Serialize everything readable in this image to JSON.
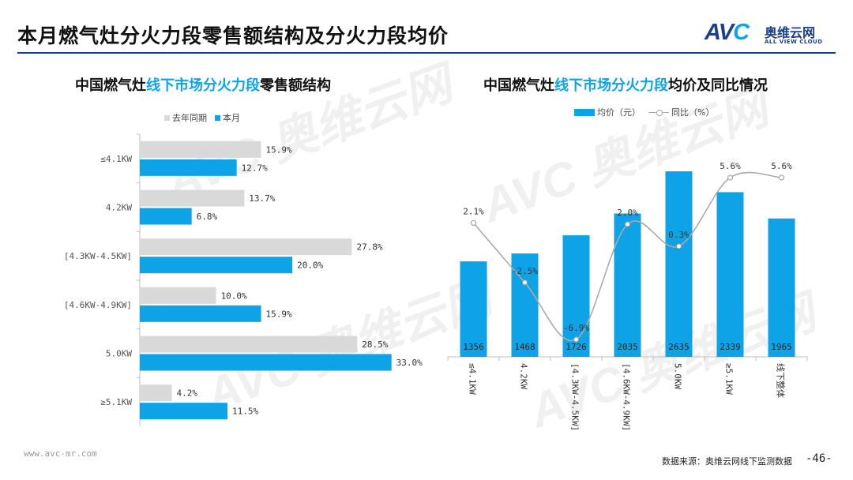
{
  "header": {
    "title": "本月燃气灶分火力段零售额结构及分火力段均价",
    "logo_mark": "AVC",
    "logo_cn": "奥维云网",
    "logo_en": "ALL VIEW CLOUD"
  },
  "colors": {
    "current": "#0ea3e6",
    "last_year": "#d9d9d9",
    "line": "#aaaaaa",
    "brand": "#1a3f8f"
  },
  "left_title": {
    "prefix": "中国燃气灶",
    "highlight": "线下市场分火力段",
    "suffix": "零售额结构"
  },
  "right_title": {
    "prefix": "中国燃气灶",
    "highlight": "线下市场分火力段",
    "suffix": "均价及同比情况"
  },
  "chart_data": [
    {
      "type": "bar",
      "orientation": "horizontal",
      "categories": [
        "≤4.1KW",
        "4.2KW",
        "[4.3KW-4.5KW]",
        "[4.6KW-4.9KW]",
        "5.0KW",
        "≥5.1KW"
      ],
      "series": [
        {
          "name": "去年同期",
          "values": [
            15.9,
            13.7,
            27.8,
            10.0,
            28.5,
            4.2
          ],
          "labels": [
            "15.9%",
            "13.7%",
            "27.8%",
            "10.0%",
            "28.5%",
            "4.2%"
          ]
        },
        {
          "name": "本月",
          "values": [
            12.7,
            6.8,
            20.0,
            15.9,
            33.0,
            11.5
          ],
          "labels": [
            "12.7%",
            "6.8%",
            "20.0%",
            "15.9%",
            "33.0%",
            "11.5%"
          ]
        }
      ],
      "xlim": [
        0,
        35
      ],
      "legend": "top-left"
    },
    {
      "type": "bar+line",
      "categories": [
        "≤4.1KW",
        "4.2KW",
        "[4.3KW-4.5KW]",
        "[4.6KW-4.9KW]",
        "5.0KW",
        "≥5.1KW",
        "线下整体"
      ],
      "bar_series": {
        "name": "均价（元）",
        "values": [
          1356,
          1468,
          1726,
          2035,
          2635,
          2339,
          1965
        ]
      },
      "line_series": {
        "name": "同比（%）",
        "values": [
          2.1,
          -2.5,
          -6.9,
          2.0,
          0.3,
          5.6,
          5.6
        ],
        "labels": [
          "2.1%",
          "-2.5%",
          "-6.9%",
          "2.0%",
          "0.3%",
          "5.6%",
          "5.6%"
        ]
      },
      "legend": "top",
      "grid": false
    }
  ],
  "footer": {
    "url": "www.avc-mr.com",
    "source": "数据来源：奥维云网线下监测数据",
    "page": "-46-"
  }
}
